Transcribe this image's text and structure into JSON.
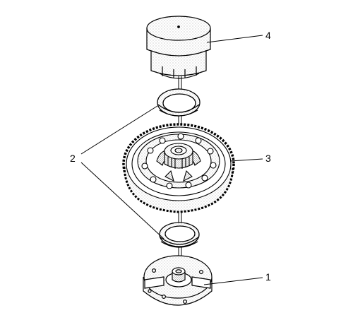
{
  "callouts": {
    "part_1": "1",
    "part_2": "2",
    "part_3": "3",
    "part_4": "4"
  },
  "colors": {
    "line": "#000000",
    "fill": "#ffffff",
    "stipple": "#9a9a9a"
  }
}
